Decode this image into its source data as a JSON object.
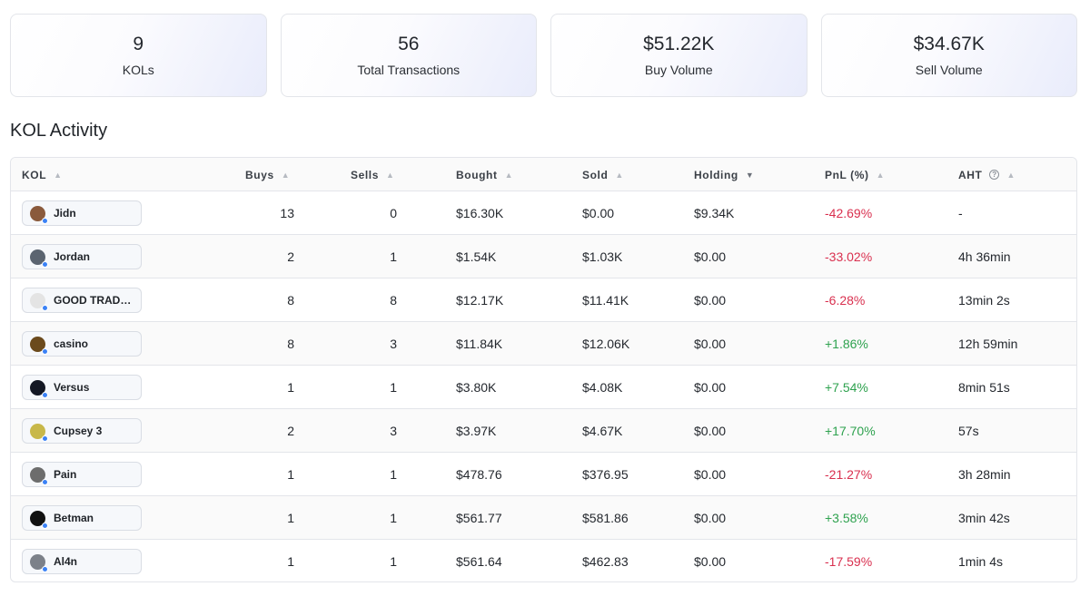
{
  "stats": [
    {
      "value": "9",
      "label": "KOLs"
    },
    {
      "value": "56",
      "label": "Total Transactions"
    },
    {
      "value": "$51.22K",
      "label": "Buy Volume"
    },
    {
      "value": "$34.67K",
      "label": "Sell Volume"
    }
  ],
  "section_title": "KOL Activity",
  "columns": {
    "kol": "KOL",
    "buys": "Buys",
    "sells": "Sells",
    "bought": "Bought",
    "sold": "Sold",
    "holding": "Holding",
    "pnl": "PnL (%)",
    "aht": "AHT"
  },
  "icons": {
    "sort": "sort-asc-icon",
    "holding_sort": "chevron-down-icon",
    "help": "question-circle-icon"
  },
  "colors": {
    "negative": "#d9304f",
    "positive": "#2fa24f",
    "online_dot": "#3b82f6"
  },
  "rows": [
    {
      "name": "Jidn",
      "buys": "13",
      "sells": "0",
      "bought": "$16.30K",
      "sold": "$0.00",
      "holding": "$9.34K",
      "pnl": "-42.69%",
      "pnl_sign": "neg",
      "aht": "-",
      "avatar_color": "#8a5a3c"
    },
    {
      "name": "Jordan",
      "buys": "2",
      "sells": "1",
      "bought": "$1.54K",
      "sold": "$1.03K",
      "holding": "$0.00",
      "pnl": "-33.02%",
      "pnl_sign": "neg",
      "aht": "4h 36min",
      "avatar_color": "#5b6470"
    },
    {
      "name": "GOOD TRADER",
      "buys": "8",
      "sells": "8",
      "bought": "$12.17K",
      "sold": "$11.41K",
      "holding": "$0.00",
      "pnl": "-6.28%",
      "pnl_sign": "neg",
      "aht": "13min 2s",
      "avatar_color": "#e4e4e4"
    },
    {
      "name": "casino",
      "buys": "8",
      "sells": "3",
      "bought": "$11.84K",
      "sold": "$12.06K",
      "holding": "$0.00",
      "pnl": "+1.86%",
      "pnl_sign": "pos",
      "aht": "12h 59min",
      "avatar_color": "#6b4a1c"
    },
    {
      "name": "Versus",
      "buys": "1",
      "sells": "1",
      "bought": "$3.80K",
      "sold": "$4.08K",
      "holding": "$0.00",
      "pnl": "+7.54%",
      "pnl_sign": "pos",
      "aht": "8min 51s",
      "avatar_color": "#141824"
    },
    {
      "name": "Cupsey 3",
      "buys": "2",
      "sells": "3",
      "bought": "$3.97K",
      "sold": "$4.67K",
      "holding": "$0.00",
      "pnl": "+17.70%",
      "pnl_sign": "pos",
      "aht": "57s",
      "avatar_color": "#c8b84a"
    },
    {
      "name": "Pain",
      "buys": "1",
      "sells": "1",
      "bought": "$478.76",
      "sold": "$376.95",
      "holding": "$0.00",
      "pnl": "-21.27%",
      "pnl_sign": "neg",
      "aht": "3h 28min",
      "avatar_color": "#6d6d6d"
    },
    {
      "name": "Betman",
      "buys": "1",
      "sells": "1",
      "bought": "$561.77",
      "sold": "$581.86",
      "holding": "$0.00",
      "pnl": "+3.58%",
      "pnl_sign": "pos",
      "aht": "3min 42s",
      "avatar_color": "#111111"
    },
    {
      "name": "Al4n",
      "buys": "1",
      "sells": "1",
      "bought": "$561.64",
      "sold": "$462.83",
      "holding": "$0.00",
      "pnl": "-17.59%",
      "pnl_sign": "neg",
      "aht": "1min 4s",
      "avatar_color": "#7c8189"
    }
  ]
}
